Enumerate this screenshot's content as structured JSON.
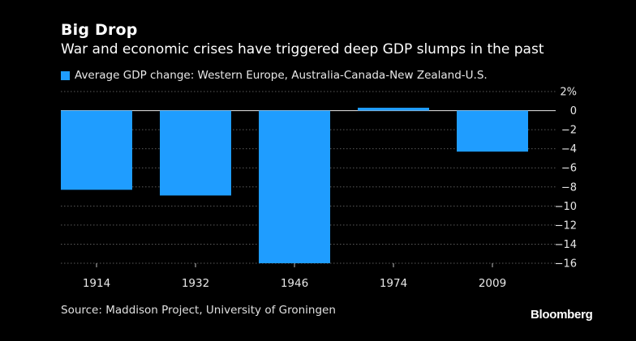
{
  "header": {
    "title": "Big Drop",
    "subtitle": "War and economic crises have triggered deep GDP slumps in the past"
  },
  "footer": {
    "source": "Source: Maddison Project, University of Groningen",
    "brand": "Bloomberg"
  },
  "colors": {
    "bar": "#1f9dff",
    "grid": "#5a5a5a",
    "zero_line": "#d0d0d0",
    "background": "#000000"
  },
  "chart_data": {
    "type": "bar",
    "title": "Big Drop",
    "subtitle": "War and economic crises have triggered deep GDP slumps in the past",
    "categories": [
      "1914",
      "1932",
      "1946",
      "1974",
      "2009"
    ],
    "series": [
      {
        "name": "Average GDP change: Western Europe, Australia-Canada-New Zealand-U.S.",
        "values": [
          -8.3,
          -8.9,
          -16.0,
          0.3,
          -4.3
        ]
      }
    ],
    "ylim": [
      -16,
      2
    ],
    "yticks": [
      2,
      0,
      -2,
      -4,
      -6,
      -8,
      -10,
      -12,
      -14,
      -16
    ],
    "ytick_labels": [
      "2%",
      "0",
      "−2",
      "−4",
      "−6",
      "−8",
      "−10",
      "−12",
      "−14",
      "−16"
    ],
    "xlabel": "",
    "ylabel": "",
    "legend_position": "top-left",
    "grid": true
  }
}
